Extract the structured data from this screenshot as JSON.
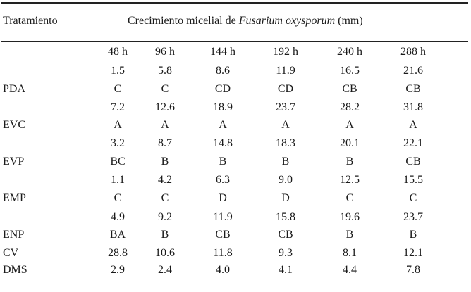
{
  "header": {
    "stub": "Tratamiento",
    "spanner_prefix": "Crecimiento micelial de ",
    "spanner_species": "Fusarium oxysporum",
    "spanner_suffix": " (mm)"
  },
  "columns": [
    "48 h",
    "96 h",
    "144 h",
    "192 h",
    "240 h",
    "288 h"
  ],
  "rows": [
    {
      "name": "PDA",
      "values": [
        "1.5",
        "5.8",
        "8.6",
        "11.9",
        "16.5",
        "21.6"
      ],
      "letters": [
        "C",
        "C",
        "CD",
        "CD",
        "CB",
        "CB"
      ]
    },
    {
      "name": "EVC",
      "values": [
        "7.2",
        "12.6",
        "18.9",
        "23.7",
        "28.2",
        "31.8"
      ],
      "letters": [
        "A",
        "A",
        "A",
        "A",
        "A",
        "A"
      ]
    },
    {
      "name": "EVP",
      "values": [
        "3.2",
        "8.7",
        "14.8",
        "18.3",
        "20.1",
        "22.1"
      ],
      "letters": [
        "BC",
        "B",
        "B",
        "B",
        "B",
        "CB"
      ]
    },
    {
      "name": "EMP",
      "values": [
        "1.1",
        "4.2",
        "6.3",
        "9.0",
        "12.5",
        "15.5"
      ],
      "letters": [
        "C",
        "C",
        "D",
        "D",
        "C",
        "C"
      ]
    },
    {
      "name": "ENP",
      "values": [
        "4.9",
        "9.2",
        "11.9",
        "15.8",
        "19.6",
        "23.7"
      ],
      "letters": [
        "BA",
        "B",
        "CB",
        "CB",
        "B",
        "B"
      ]
    }
  ],
  "stats": [
    {
      "name": "CV",
      "values": [
        "28.8",
        "10.6",
        "11.8",
        "9.3",
        "8.1",
        "12.1"
      ]
    },
    {
      "name": "DMS",
      "values": [
        "2.9",
        "2.4",
        "4.0",
        "4.1",
        "4.4",
        "7.8"
      ]
    }
  ]
}
